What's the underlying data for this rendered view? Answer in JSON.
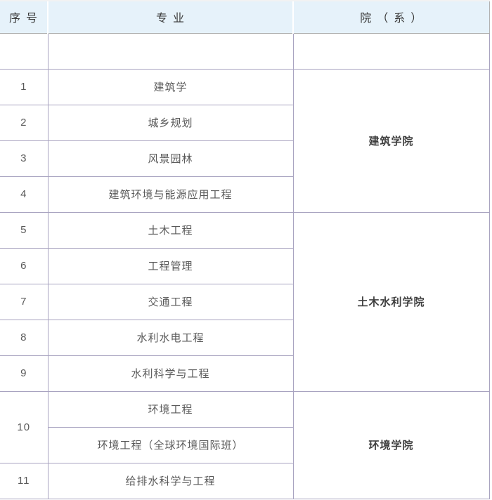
{
  "table": {
    "headers": [
      "序号",
      "专业",
      "院（系）"
    ],
    "groups": [
      {
        "college": "建筑学院",
        "majors": [
          {
            "no": "1",
            "major": "建筑学"
          },
          {
            "no": "2",
            "major": "城乡规划"
          },
          {
            "no": "3",
            "major": "风景园林"
          },
          {
            "no": "4",
            "major": "建筑环境与能源应用工程"
          }
        ]
      },
      {
        "college": "土木水利学院",
        "majors": [
          {
            "no": "5",
            "major": "土木工程"
          },
          {
            "no": "6",
            "major": "工程管理"
          },
          {
            "no": "7",
            "major": "交通工程"
          },
          {
            "no": "8",
            "major": "水利水电工程"
          },
          {
            "no": "9",
            "major": "水利科学与工程"
          }
        ]
      },
      {
        "college": "环境学院",
        "majors": [
          {
            "no": "10",
            "major": "环境工程"
          },
          {
            "no": "",
            "major": "环境工程（全球环境国际班）"
          },
          {
            "no": "11",
            "major": "给排水科学与工程"
          }
        ]
      }
    ]
  },
  "colors": {
    "header_bg": "#e6f2fa",
    "header_divider": "#ffffff",
    "header_border_bottom": "#ababab",
    "grid_border": "#a8a3c0",
    "header_text": "#3b3b3b",
    "body_text": "#595959",
    "college_text": "#3f3f3f"
  }
}
